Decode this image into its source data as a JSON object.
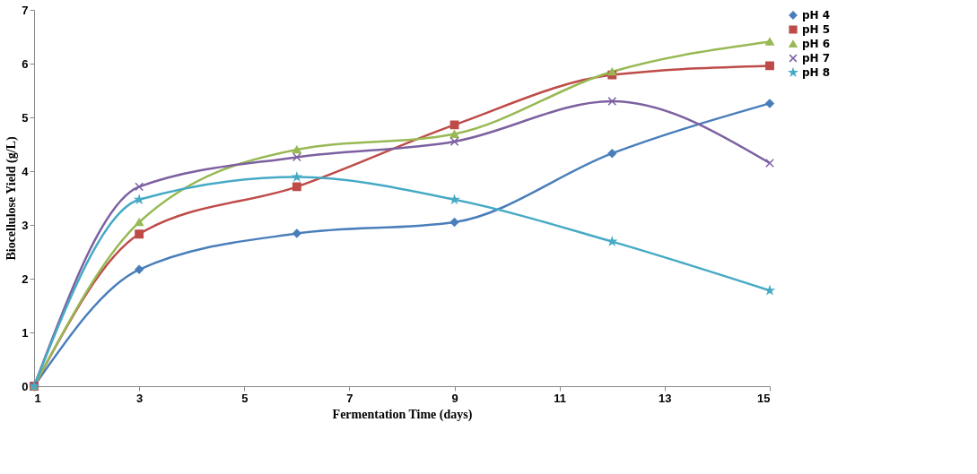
{
  "chart_data": {
    "type": "line",
    "xlabel": "Fermentation Time (days)",
    "ylabel": "Biocellulose Yield (g/L)",
    "x": [
      1,
      3,
      6,
      9,
      12,
      15
    ],
    "series": [
      {
        "name": "pH 4",
        "color": "#4a7ebb",
        "marker": "diamond",
        "values": [
          0,
          2.17,
          2.84,
          3.05,
          4.33,
          5.26
        ]
      },
      {
        "name": "pH 5",
        "color": "#be4b48",
        "marker": "square",
        "values": [
          0,
          2.83,
          3.71,
          4.86,
          5.79,
          5.96
        ]
      },
      {
        "name": "pH 6",
        "color": "#98b954",
        "marker": "triangle",
        "values": [
          0,
          3.05,
          4.4,
          4.69,
          5.85,
          6.41
        ]
      },
      {
        "name": "pH 7",
        "color": "#7d60a0",
        "marker": "cross",
        "values": [
          0,
          3.71,
          4.26,
          4.55,
          5.3,
          4.15
        ]
      },
      {
        "name": "pH 8",
        "color": "#46aac5",
        "marker": "star",
        "values": [
          0,
          3.47,
          3.89,
          3.47,
          2.69,
          1.78
        ]
      }
    ],
    "xlim": [
      1,
      15
    ],
    "xticks": [
      1,
      3,
      5,
      7,
      9,
      11,
      13,
      15
    ],
    "ylim": [
      0,
      7
    ],
    "yticks": [
      0,
      1,
      2,
      3,
      4,
      5,
      6,
      7
    ],
    "grid": false,
    "legend": "right"
  }
}
